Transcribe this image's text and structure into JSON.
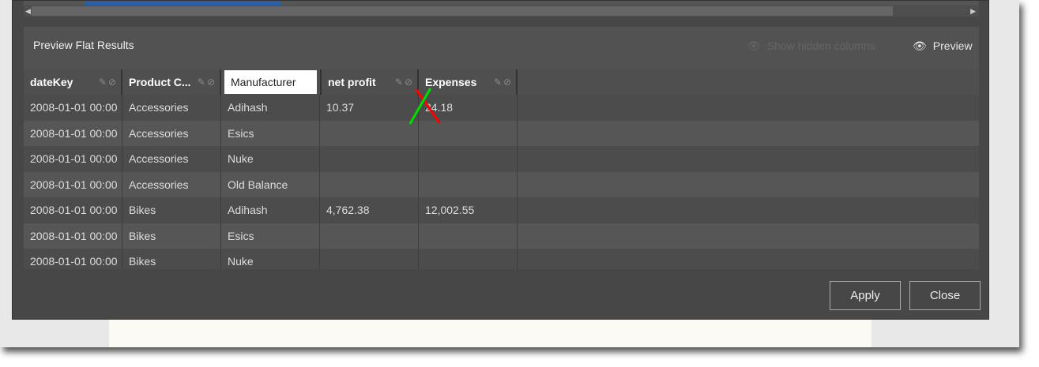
{
  "dialog": {
    "title": "Preview Flat Results",
    "show_hidden_label": "Show hidden columns",
    "preview_label": "Preview",
    "apply_label": "Apply",
    "close_label": "Close"
  },
  "columns": [
    {
      "label": "dateKey",
      "icons": [
        "pencil-icon",
        "eye-slash-icon"
      ]
    },
    {
      "label": "Product C...",
      "icons": [
        "pencil-icon",
        "eye-slash-icon"
      ]
    },
    {
      "label": "Manufacturer",
      "editing": true
    },
    {
      "label": "net profit",
      "icons": [
        "pencil-icon",
        "eye-slash-icon"
      ]
    },
    {
      "label": "Expenses",
      "icons": [
        "pencil-icon",
        "eye-slash-icon"
      ]
    }
  ],
  "rows": [
    [
      "2008-01-01 00:00",
      "Accessories",
      "Adihash",
      "10.37",
      "24.18"
    ],
    [
      "2008-01-01 00:00",
      "Accessories",
      "Esics",
      "",
      ""
    ],
    [
      "2008-01-01 00:00",
      "Accessories",
      "Nuke",
      "",
      ""
    ],
    [
      "2008-01-01 00:00",
      "Accessories",
      "Old Balance",
      "",
      ""
    ],
    [
      "2008-01-01 00:00",
      "Bikes",
      "Adihash",
      "4,762.38",
      "12,002.55"
    ],
    [
      "2008-01-01 00:00",
      "Bikes",
      "Esics",
      "",
      ""
    ],
    [
      "2008-01-01 00:00",
      "Bikes",
      "Nuke",
      "",
      ""
    ]
  ],
  "annotation_colors": {
    "red_arrow": "#ff0000",
    "green_arrow": "#00dd00"
  }
}
